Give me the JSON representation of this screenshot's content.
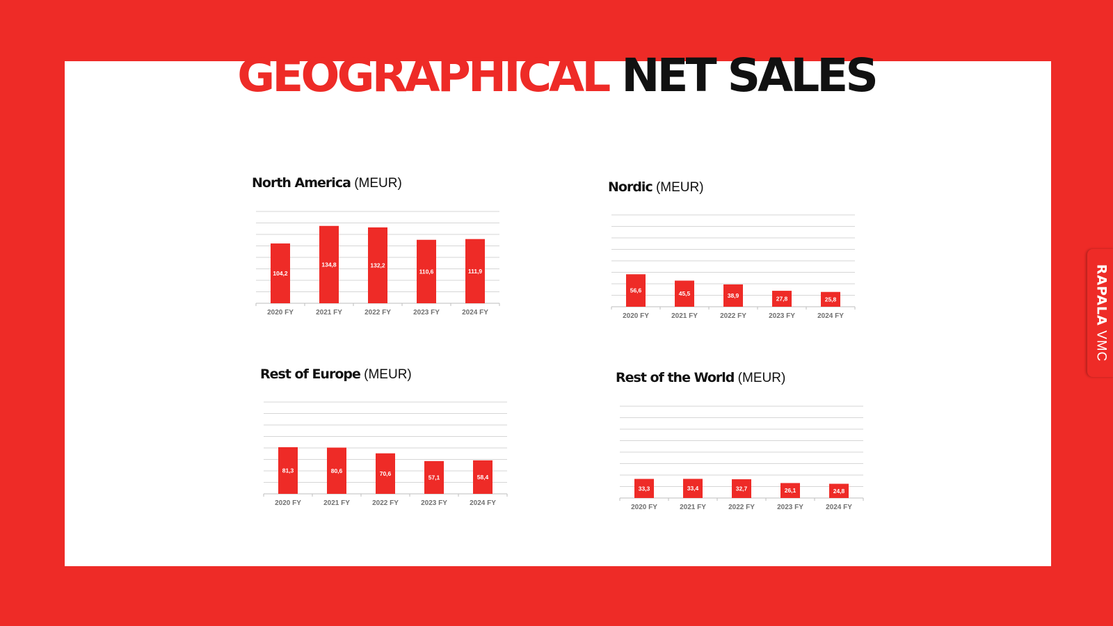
{
  "page": {
    "title_red": "GEOGRAPHICAL",
    "title_dark": "NET SALES",
    "brand_bold": "RAPALA",
    "brand_light": "VMC",
    "colors": {
      "accent": "#ee2b27",
      "background": "#ffffff",
      "text": "#111111"
    }
  },
  "chart_data": [
    {
      "type": "bar",
      "title_bold": "North America",
      "title_unit": "(MEUR)",
      "categories": [
        "2020 FY",
        "2021 FY",
        "2022 FY",
        "2023 FY",
        "2024 FY"
      ],
      "values": [
        104.2,
        134.8,
        132.2,
        110.6,
        111.9
      ],
      "value_labels": [
        "104,2",
        "134,8",
        "132,2",
        "110,6",
        "111,9"
      ],
      "ylim": [
        0,
        160
      ],
      "grid": true,
      "gridlines": 8
    },
    {
      "type": "bar",
      "title_bold": "Nordic",
      "title_unit": "(MEUR)",
      "categories": [
        "2020 FY",
        "2021 FY",
        "2022 FY",
        "2023 FY",
        "2024 FY"
      ],
      "values": [
        56.6,
        45.5,
        38.9,
        27.8,
        25.8
      ],
      "value_labels": [
        "56,6",
        "45,5",
        "38,9",
        "27,8",
        "25,8"
      ],
      "ylim": [
        0,
        160
      ],
      "grid": true,
      "gridlines": 8
    },
    {
      "type": "bar",
      "title_bold": "Rest of Europe",
      "title_unit": "(MEUR)",
      "categories": [
        "2020 FY",
        "2021 FY",
        "2022 FY",
        "2023 FY",
        "2024 FY"
      ],
      "values": [
        81.3,
        80.6,
        70.6,
        57.1,
        58.4
      ],
      "value_labels": [
        "81,3",
        "80,6",
        "70,6",
        "57,1",
        "58,4"
      ],
      "ylim": [
        0,
        160
      ],
      "grid": true,
      "gridlines": 8
    },
    {
      "type": "bar",
      "title_bold": "Rest of the World",
      "title_unit": "(MEUR)",
      "categories": [
        "2020 FY",
        "2021 FY",
        "2022 FY",
        "2023 FY",
        "2024 FY"
      ],
      "values": [
        33.3,
        33.4,
        32.7,
        26.1,
        24.8
      ],
      "value_labels": [
        "33,3",
        "33,4",
        "32,7",
        "26,1",
        "24,8"
      ],
      "ylim": [
        0,
        160
      ],
      "grid": true,
      "gridlines": 8
    }
  ]
}
